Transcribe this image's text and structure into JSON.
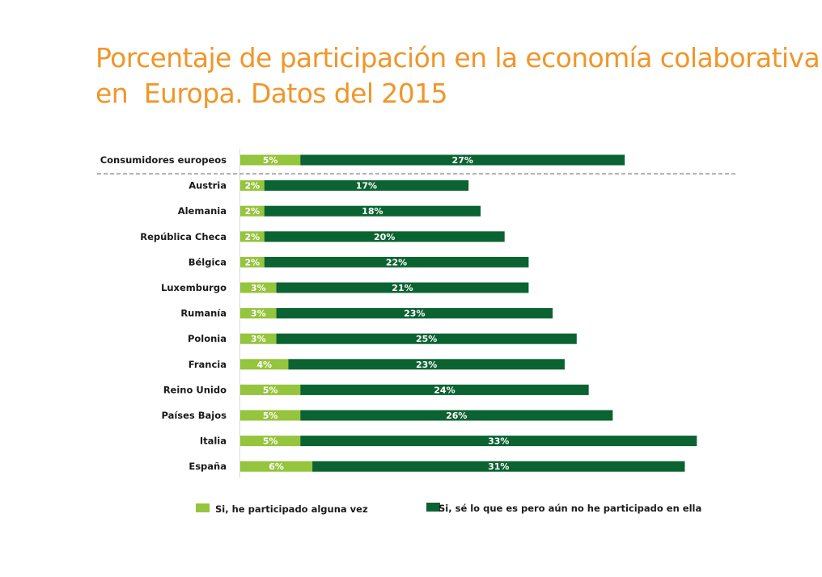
{
  "title_lines": [
    "Porcentaje de participación en la economía colaborativa",
    "en  Europa. Datos del 2015"
  ],
  "colors": {
    "title": "#f0962a",
    "light": "#95c43d",
    "dark": "#0b6331"
  },
  "chart_data": {
    "type": "bar",
    "orientation": "horizontal",
    "stacked": true,
    "title": "Porcentaje de participación en la economía colaborativa en  Europa. Datos del 2015",
    "categories": [
      "Consumidores europeos",
      "Austria",
      "Alemania",
      "República Checa",
      "Bélgica",
      "Luxemburgo",
      "Rumanía",
      "Polonia",
      "Francia",
      "Reino Unido",
      "Países Bajos",
      "Italia",
      "España"
    ],
    "series": [
      {
        "name": "Si, he participado alguna vez",
        "values": [
          5,
          2,
          2,
          2,
          2,
          3,
          3,
          3,
          4,
          5,
          5,
          5,
          6
        ],
        "labels": [
          "5%",
          "2%",
          "2%",
          "2%",
          "2%",
          "3%",
          "3%",
          "3%",
          "4%",
          "5%",
          "5%",
          "5%",
          "6%"
        ]
      },
      {
        "name": "Si, sé lo que es pero aún no he participado en ella",
        "values": [
          27,
          17,
          18,
          20,
          22,
          21,
          23,
          25,
          23,
          24,
          26,
          33,
          31
        ],
        "labels": [
          "27%",
          "17%",
          "18%",
          "20%",
          "22%",
          "21%",
          "23%",
          "25%",
          "23%",
          "24%",
          "26%",
          "33%",
          "31%"
        ]
      }
    ],
    "xlabel": "",
    "ylabel": "",
    "xlim": [
      0,
      38
    ],
    "grid": false,
    "legend": "bottom",
    "separator_after": "Consumidores europeos"
  }
}
